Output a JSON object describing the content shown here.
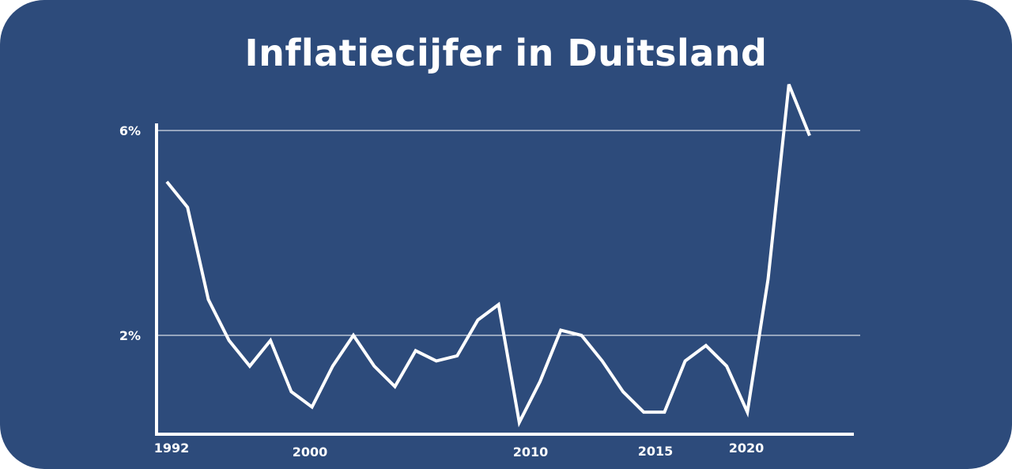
{
  "colors": {
    "background": "#2d4b7b",
    "foreground": "#ffffff"
  },
  "chart_data": {
    "type": "line",
    "title": "Inflatiecijfer in Duitsland",
    "xlabel": "",
    "ylabel": "",
    "xlim": [
      1991.5,
      2024.5
    ],
    "ylim": [
      0,
      6
    ],
    "grid": true,
    "yticks": [
      {
        "value": 2,
        "label": "2%"
      },
      {
        "value": 6,
        "label": "6%"
      }
    ],
    "xticks": [
      {
        "value": 1992,
        "label": "1992"
      },
      {
        "value": 2000,
        "label": "2000"
      },
      {
        "value": 2010,
        "label": "2010"
      },
      {
        "value": 2015,
        "label": "2015"
      },
      {
        "value": 2020,
        "label": "2020"
      }
    ],
    "series": [
      {
        "x": [
          1992,
          1993,
          1994,
          1995,
          1996,
          1997,
          1998,
          1999,
          2000,
          2001,
          2002,
          2003,
          2004,
          2005,
          2006,
          2007,
          2008,
          2009,
          2010,
          2011,
          2012,
          2013,
          2014,
          2015,
          2016,
          2017,
          2018,
          2019,
          2020,
          2021,
          2022,
          2023
        ],
        "values": [
          5.0,
          4.5,
          2.7,
          1.9,
          1.4,
          1.9,
          0.9,
          0.6,
          1.4,
          2.0,
          1.4,
          1.0,
          1.7,
          1.5,
          1.6,
          2.3,
          2.6,
          0.3,
          1.1,
          2.1,
          2.0,
          1.5,
          0.9,
          0.5,
          0.5,
          1.5,
          1.8,
          1.4,
          0.5,
          3.1,
          6.9,
          5.9
        ]
      }
    ]
  }
}
